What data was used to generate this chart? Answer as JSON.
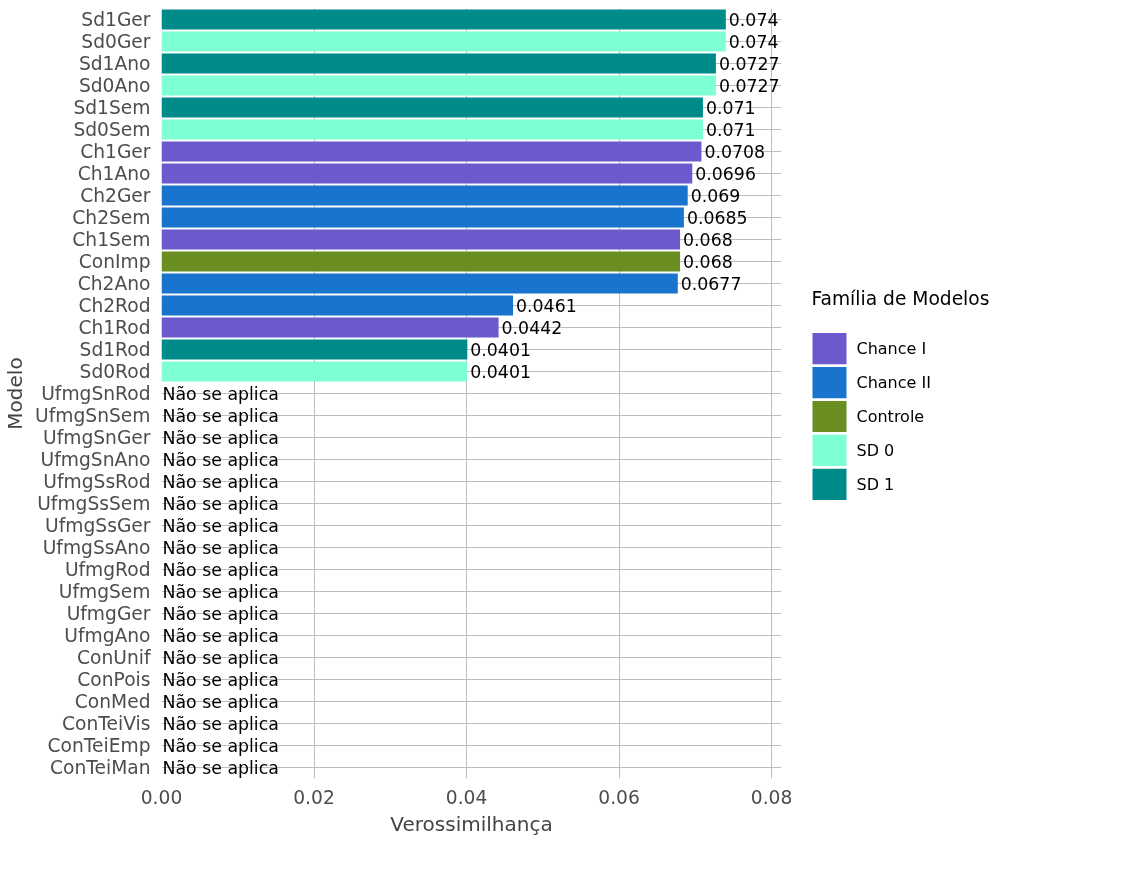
{
  "chart_data": {
    "type": "bar",
    "orientation": "horizontal",
    "xlabel": "Verossimilhança",
    "ylabel": "Modelo",
    "legend_title": "Família de Modelos",
    "legend": "right",
    "grid": true,
    "data_labels": true,
    "categories": [
      "Sd1Ger",
      "Sd0Ger",
      "Sd1Ano",
      "Sd0Ano",
      "Sd1Sem",
      "Sd0Sem",
      "Ch1Ger",
      "Ch1Ano",
      "Ch2Ger",
      "Ch2Sem",
      "Ch1Sem",
      "ConImp",
      "Ch2Ano",
      "Ch2Rod",
      "Ch1Rod",
      "Sd1Rod",
      "Sd0Rod",
      "UfmgSnRod",
      "UfmgSnSem",
      "UfmgSnGer",
      "UfmgSnAno",
      "UfmgSsRod",
      "UfmgSsSem",
      "UfmgSsGer",
      "UfmgSsAno",
      "UfmgRod",
      "UfmgSem",
      "UfmgGer",
      "UfmgAno",
      "ConUnif",
      "ConPois",
      "ConMed",
      "ConTeiVis",
      "ConTeiEmp",
      "ConTeiMan"
    ],
    "xlim": [
      0,
      0.0813
    ],
    "xticks": [
      {
        "value": 0,
        "label": "0.00"
      },
      {
        "value": 0.02,
        "label": "0.02"
      },
      {
        "value": 0.04,
        "label": "0.04"
      },
      {
        "value": 0.06,
        "label": "0.06"
      },
      {
        "value": 0.08,
        "label": "0.08"
      }
    ],
    "series": [
      {
        "name": "Chance I",
        "color": "#6a5acd",
        "values": [
          null,
          null,
          null,
          null,
          null,
          null,
          0.0708,
          0.0696,
          null,
          null,
          0.068,
          null,
          null,
          null,
          0.0442,
          null,
          null,
          null,
          null,
          null,
          null,
          null,
          null,
          null,
          null,
          null,
          null,
          null,
          null,
          null,
          null,
          null,
          null,
          null,
          null
        ]
      },
      {
        "name": "Chance II",
        "color": "#1874cd",
        "values": [
          null,
          null,
          null,
          null,
          null,
          null,
          null,
          null,
          0.069,
          0.0685,
          null,
          null,
          0.0677,
          0.0461,
          null,
          null,
          null,
          null,
          null,
          null,
          null,
          null,
          null,
          null,
          null,
          null,
          null,
          null,
          null,
          null,
          null,
          null,
          null,
          null,
          null
        ]
      },
      {
        "name": "Controle",
        "color": "#6b8e23",
        "values": [
          null,
          null,
          null,
          null,
          null,
          null,
          null,
          null,
          null,
          null,
          null,
          0.068,
          null,
          null,
          null,
          null,
          null,
          null,
          null,
          null,
          null,
          null,
          null,
          null,
          null,
          null,
          null,
          null,
          null,
          null,
          null,
          null,
          null,
          null,
          null
        ]
      },
      {
        "name": "SD 0",
        "color": "#7fffd4",
        "values": [
          null,
          0.074,
          null,
          0.0727,
          null,
          0.071,
          null,
          null,
          null,
          null,
          null,
          null,
          null,
          null,
          null,
          null,
          0.0401,
          null,
          null,
          null,
          null,
          null,
          null,
          null,
          null,
          null,
          null,
          null,
          null,
          null,
          null,
          null,
          null,
          null,
          null
        ]
      },
      {
        "name": "SD 1",
        "color": "#008b8b",
        "values": [
          0.074,
          null,
          0.0727,
          null,
          0.071,
          null,
          null,
          null,
          null,
          null,
          null,
          null,
          null,
          null,
          null,
          0.0401,
          null,
          null,
          null,
          null,
          null,
          null,
          null,
          null,
          null,
          null,
          null,
          null,
          null,
          null,
          null,
          null,
          null,
          null,
          null
        ]
      }
    ],
    "annotations": [
      "Não se aplica",
      "Não se aplica",
      "Não se aplica",
      "Não se aplica",
      "Não se aplica",
      "Não se aplica",
      "Não se aplica",
      "Não se aplica",
      "Não se aplica",
      "Não se aplica",
      "Não se aplica",
      "Não se aplica",
      "Não se aplica",
      "Não se aplica",
      "Não se aplica",
      "Não se aplica",
      "Não se aplica",
      "Não se aplica"
    ]
  }
}
